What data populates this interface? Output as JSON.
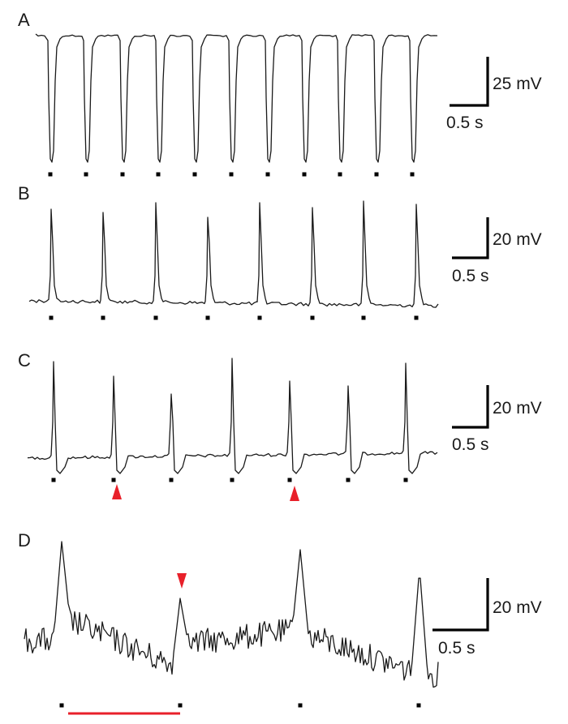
{
  "chart_data": [
    {
      "type": "line",
      "panel": "A",
      "stimulus_marker_count": 11,
      "scale_bar": {
        "voltage": "25 mV",
        "time": "0.5 s"
      }
    },
    {
      "type": "line",
      "panel": "B",
      "stimulus_marker_count": 8,
      "scale_bar": {
        "voltage": "20 mV",
        "time": "0.5 s"
      }
    },
    {
      "type": "line",
      "panel": "C",
      "stimulus_marker_count": 7,
      "arrowhead_count": 2,
      "scale_bar": {
        "voltage": "20 mV",
        "time": "0.5 s"
      }
    },
    {
      "type": "line",
      "panel": "D",
      "stimulus_marker_count": 4,
      "arrowhead_count": 1,
      "scale_bar": {
        "voltage": "20 mV",
        "time": "0.5 s"
      }
    }
  ],
  "colors": {
    "trace": "#1a1a1a",
    "marker": "#000000",
    "accent": "#e8202a"
  }
}
